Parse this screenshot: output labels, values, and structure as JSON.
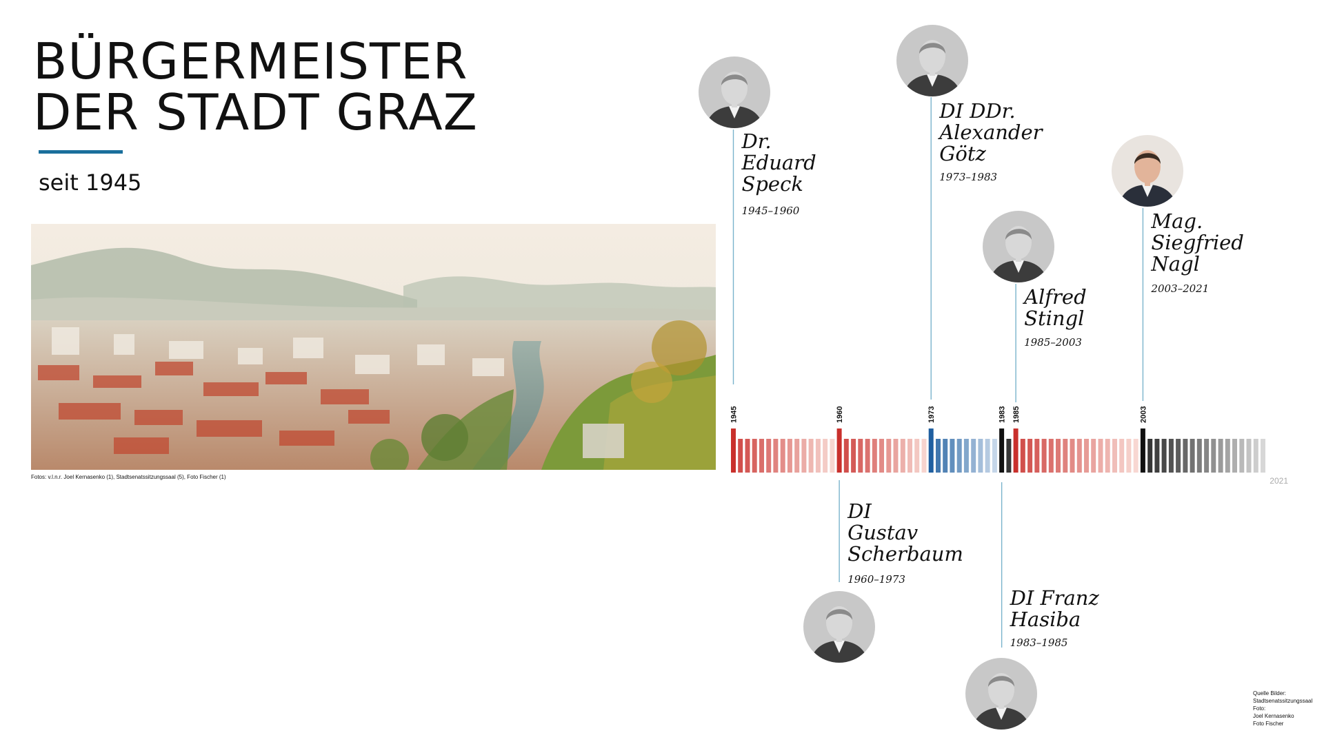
{
  "title_lines": [
    "BÜRGERMEISTER",
    "DER STADT GRAZ"
  ],
  "subtitle": "seit 1945",
  "photo_credits": "Fotos: v.l.n.r. Joel Kernasenko (1), Stadtsenatssitzungssaal (5), Foto Fischer (1)",
  "source_lines": [
    "Quelle Bilder:",
    "Stadtsenatssitzungssaal",
    "Foto:",
    "Joel Kernasenko",
    "Foto Fischer"
  ],
  "colors": {
    "accent": "#1a6f9c",
    "red": "#c9302c",
    "blue": "#1f5fa0",
    "black": "#111111",
    "connector": "#7ab3cc"
  },
  "chart_data": {
    "type": "timeline",
    "start_year": 1945,
    "end_year": 2021,
    "end_label": "2021",
    "terms": [
      {
        "title_lines": [
          "Dr.",
          "Eduard",
          "Speck"
        ],
        "term": "1945–1960",
        "start": 1945,
        "end": 1960,
        "start_label": "1945",
        "color": "red",
        "side": "top",
        "portrait_icon": "portrait-speck"
      },
      {
        "title_lines": [
          "DI",
          "Gustav",
          "Scherbaum"
        ],
        "term": "1960–1973",
        "start": 1960,
        "end": 1973,
        "start_label": "1960",
        "color": "red",
        "side": "bottom",
        "portrait_icon": "portrait-scherbaum"
      },
      {
        "title_lines": [
          "DI DDr.",
          "Alexander",
          "Götz"
        ],
        "term": "1973–1983",
        "start": 1973,
        "end": 1983,
        "start_label": "1973",
        "color": "blue",
        "side": "top",
        "portrait_icon": "portrait-goetz"
      },
      {
        "title_lines": [
          "DI Franz",
          "Hasiba"
        ],
        "term": "1983–1985",
        "start": 1983,
        "end": 1985,
        "start_label": "1983",
        "color": "black",
        "side": "bottom",
        "portrait_icon": "portrait-hasiba"
      },
      {
        "title_lines": [
          "Alfred",
          "Stingl"
        ],
        "term": "1985–2003",
        "start": 1985,
        "end": 2003,
        "start_label": "1985",
        "color": "red",
        "side": "top",
        "portrait_icon": "portrait-stingl"
      },
      {
        "title_lines": [
          "Mag.",
          "Siegfried",
          "Nagl"
        ],
        "term": "2003–2021",
        "start": 2003,
        "end": 2021,
        "start_label": "2003",
        "color": "black",
        "side": "top",
        "portrait_icon": "portrait-nagl"
      }
    ]
  }
}
